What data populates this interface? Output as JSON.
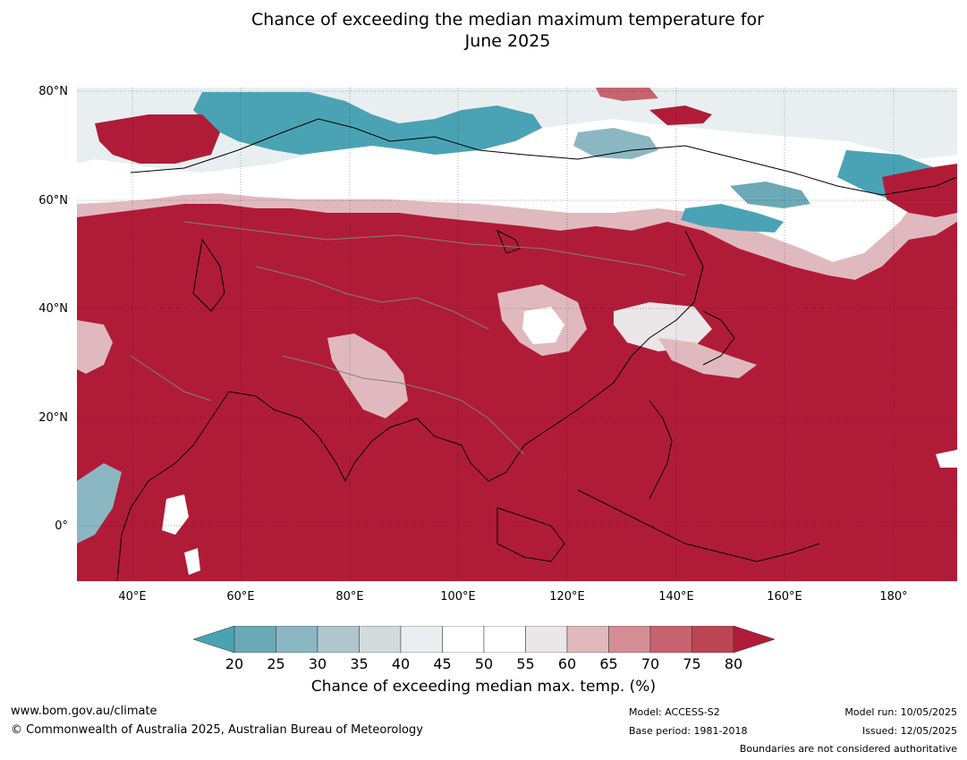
{
  "title": {
    "line1": "Chance of exceeding the median maximum temperature for",
    "line2": "June 2025"
  },
  "map": {
    "lat_labels": [
      "80°N",
      "60°N",
      "40°N",
      "20°N",
      "0°"
    ],
    "lon_labels": [
      "40°E",
      "60°E",
      "80°E",
      "100°E",
      "120°E",
      "140°E",
      "160°E",
      "180°"
    ],
    "colors": {
      "dominant": "#b01c38",
      "low": "#4aa3b4",
      "neutral": "#ffffff",
      "coast": "#000000",
      "border": "#808080"
    }
  },
  "colorbar": {
    "ticks": [
      "20",
      "25",
      "30",
      "35",
      "40",
      "45",
      "50",
      "55",
      "60",
      "65",
      "70",
      "75",
      "80"
    ],
    "colors": [
      "#4aa3b4",
      "#6ca9b6",
      "#8bb7c2",
      "#afc6cc",
      "#d3dbdd",
      "#e9eff1",
      "#ffffff",
      "#ffffff",
      "#ebe6e8",
      "#e0b9be",
      "#d58d95",
      "#c7636f",
      "#bd4552",
      "#b01c38"
    ],
    "label": "Chance of exceeding median max. temp. (%)"
  },
  "footer": {
    "website": "www.bom.gov.au/climate",
    "copyright": "© Commonwealth of Australia 2025, Australian Bureau of Meteorology",
    "model": "Model: ACCESS-S2",
    "base_period": "Base period: 1981-2018",
    "model_run": "Model run: 10/05/2025",
    "issued": "Issued: 12/05/2025",
    "disclaimer": "Boundaries are not considered authoritative"
  }
}
